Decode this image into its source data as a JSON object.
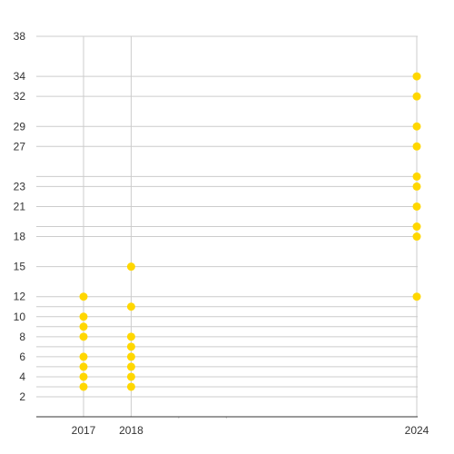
{
  "chart_data": {
    "type": "scatter",
    "title": "",
    "xlabel": "",
    "ylabel": "",
    "grid": true,
    "legend": "none",
    "xlim": [
      2015.6,
      2024
    ],
    "ylim": [
      0,
      38
    ],
    "x_ticks": [
      2017,
      2018,
      2024
    ],
    "x_tick_labels": [
      "2017",
      "2018",
      "2024"
    ],
    "y_ticks": [
      2,
      4,
      6,
      8,
      10,
      12,
      15,
      18,
      21,
      23,
      27,
      29,
      32,
      34,
      38
    ],
    "y_tick_labels": [
      "2",
      "4",
      "6",
      "8",
      "10",
      "12",
      "15",
      "18",
      "21",
      "23",
      "27",
      "29",
      "32",
      "34",
      "38"
    ],
    "extra_y_gridlines": [
      3,
      5,
      7,
      9,
      11,
      19,
      24
    ],
    "extra_x_gridlines": [
      2019,
      2020
    ],
    "series": [
      {
        "color": "#FFD700",
        "points": [
          {
            "x": 2017,
            "y": 3
          },
          {
            "x": 2017,
            "y": 4
          },
          {
            "x": 2017,
            "y": 5
          },
          {
            "x": 2017,
            "y": 6
          },
          {
            "x": 2017,
            "y": 8
          },
          {
            "x": 2017,
            "y": 9
          },
          {
            "x": 2017,
            "y": 10
          },
          {
            "x": 2017,
            "y": 12
          },
          {
            "x": 2018,
            "y": 3
          },
          {
            "x": 2018,
            "y": 4
          },
          {
            "x": 2018,
            "y": 5
          },
          {
            "x": 2018,
            "y": 6
          },
          {
            "x": 2018,
            "y": 7
          },
          {
            "x": 2018,
            "y": 8
          },
          {
            "x": 2018,
            "y": 11
          },
          {
            "x": 2018,
            "y": 15
          },
          {
            "x": 2024,
            "y": 12
          },
          {
            "x": 2024,
            "y": 18
          },
          {
            "x": 2024,
            "y": 19
          },
          {
            "x": 2024,
            "y": 21
          },
          {
            "x": 2024,
            "y": 23
          },
          {
            "x": 2024,
            "y": 24
          },
          {
            "x": 2024,
            "y": 27
          },
          {
            "x": 2024,
            "y": 29
          },
          {
            "x": 2024,
            "y": 32
          },
          {
            "x": 2024,
            "y": 34
          }
        ]
      }
    ],
    "colors": {
      "point": "#FFD700",
      "gridline": "#cccccc",
      "axis": "#333333",
      "label": "#333333"
    }
  }
}
